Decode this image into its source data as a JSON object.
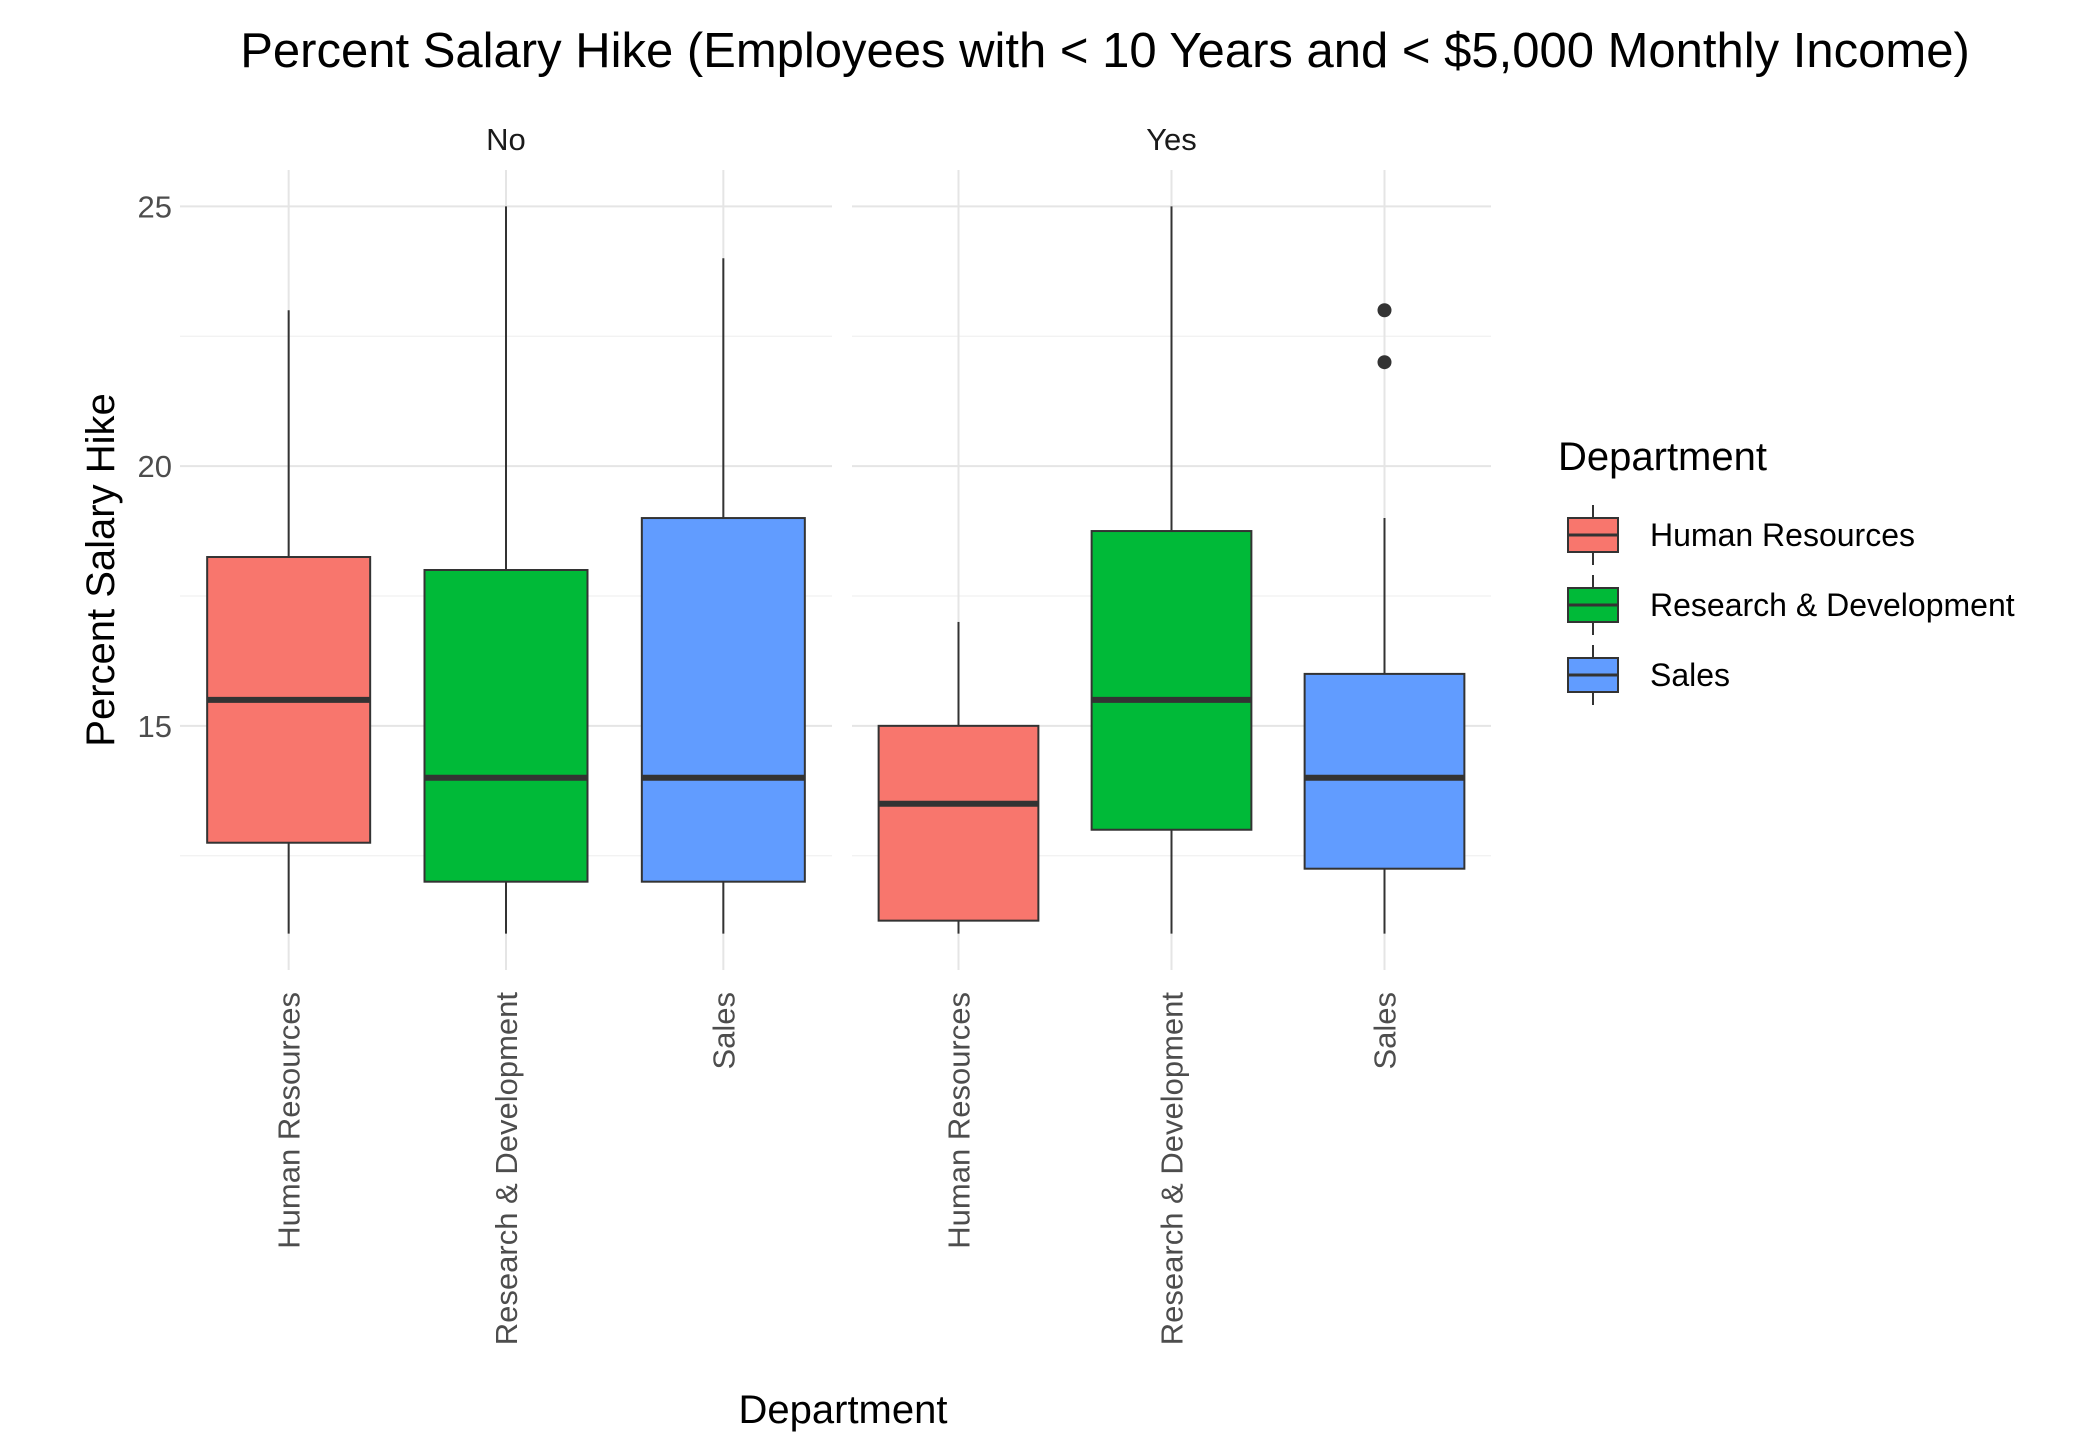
{
  "chart_data": {
    "type": "box",
    "title": "Percent Salary Hike (Employees with < 10 Years and < $5,000 Monthly Income)",
    "xlabel": "Department",
    "ylabel": "Percent Salary Hike",
    "ylim": [
      10.3,
      25.7
    ],
    "yticks": [
      15,
      20,
      25
    ],
    "grid": true,
    "legend": {
      "title": "Department",
      "position": "right",
      "entries": [
        {
          "label": "Human Resources",
          "color": "#F8766D"
        },
        {
          "label": "Research & Development",
          "color": "#00BA38"
        },
        {
          "label": "Sales",
          "color": "#619CFF"
        }
      ]
    },
    "categories": [
      "Human Resources",
      "Research & Development",
      "Sales"
    ],
    "facets": [
      {
        "label": "No",
        "boxes": [
          {
            "category": "Human Resources",
            "whisker_low": 11,
            "q1": 12.75,
            "median": 15.5,
            "q3": 18.25,
            "whisker_high": 23,
            "outliers": []
          },
          {
            "category": "Research & Development",
            "whisker_low": 11,
            "q1": 12,
            "median": 14,
            "q3": 18,
            "whisker_high": 25,
            "outliers": []
          },
          {
            "category": "Sales",
            "whisker_low": 11,
            "q1": 12,
            "median": 14,
            "q3": 19,
            "whisker_high": 24,
            "outliers": []
          }
        ]
      },
      {
        "label": "Yes",
        "boxes": [
          {
            "category": "Human Resources",
            "whisker_low": 11,
            "q1": 11.25,
            "median": 13.5,
            "q3": 15,
            "whisker_high": 17,
            "outliers": []
          },
          {
            "category": "Research & Development",
            "whisker_low": 11,
            "q1": 13,
            "median": 15.5,
            "q3": 18.75,
            "whisker_high": 25,
            "outliers": []
          },
          {
            "category": "Sales",
            "whisker_low": 11,
            "q1": 12.25,
            "median": 14,
            "q3": 16,
            "whisker_high": 19,
            "outliers": [
              22,
              23
            ]
          }
        ]
      }
    ]
  }
}
